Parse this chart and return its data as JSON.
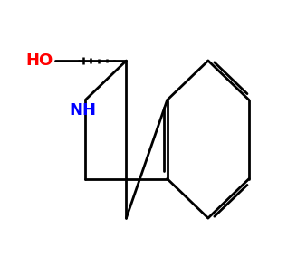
{
  "bg_color": "#ffffff",
  "bond_color": "#000000",
  "N_color": "#0000ff",
  "O_color": "#ff0000",
  "bond_width": 2.0,
  "figsize": [
    3.28,
    3.05
  ],
  "dpi": 100,
  "font_size_atom": 13,
  "HO_text": "HO",
  "NH_text": "NH"
}
